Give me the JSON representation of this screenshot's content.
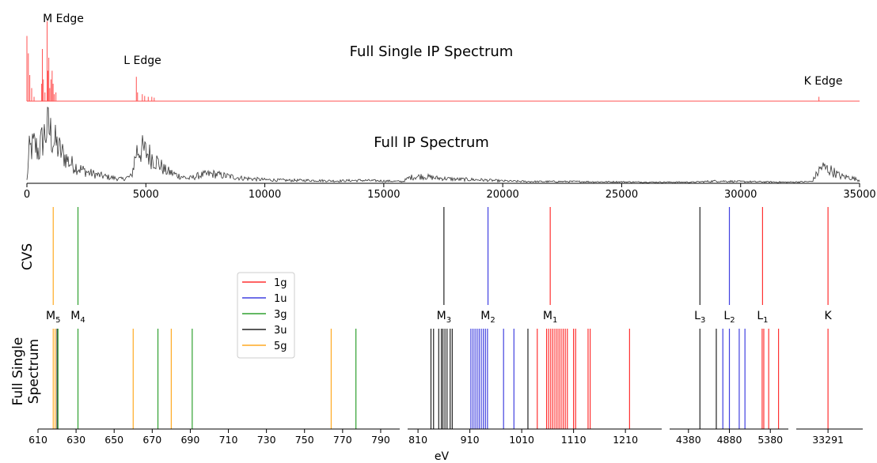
{
  "chart_data": [
    {
      "type": "line",
      "title": "Full Single IP Spectrum",
      "color": "#ff5050",
      "annotations": [
        {
          "text": "M Edge",
          "x": 2500
        },
        {
          "text": "L Edge",
          "x": 4900
        },
        {
          "text": "K Edge",
          "x": 33300
        }
      ],
      "peaks": [
        {
          "x": 0,
          "y": 0.75
        },
        {
          "x": 60,
          "y": 0.55
        },
        {
          "x": 120,
          "y": 0.3
        },
        {
          "x": 200,
          "y": 0.15
        },
        {
          "x": 300,
          "y": 0.05
        },
        {
          "x": 620,
          "y": 0.2
        },
        {
          "x": 650,
          "y": 0.6
        },
        {
          "x": 690,
          "y": 0.25
        },
        {
          "x": 760,
          "y": 0.1
        },
        {
          "x": 850,
          "y": 0.92
        },
        {
          "x": 880,
          "y": 0.35
        },
        {
          "x": 920,
          "y": 0.5
        },
        {
          "x": 960,
          "y": 0.15
        },
        {
          "x": 1010,
          "y": 0.25
        },
        {
          "x": 1060,
          "y": 0.35
        },
        {
          "x": 1100,
          "y": 0.2
        },
        {
          "x": 1150,
          "y": 0.08
        },
        {
          "x": 1220,
          "y": 0.1
        },
        {
          "x": 4600,
          "y": 0.28
        },
        {
          "x": 4650,
          "y": 0.1
        },
        {
          "x": 4850,
          "y": 0.08
        },
        {
          "x": 4950,
          "y": 0.06
        },
        {
          "x": 5100,
          "y": 0.05
        },
        {
          "x": 5250,
          "y": 0.05
        },
        {
          "x": 5350,
          "y": 0.04
        },
        {
          "x": 33291,
          "y": 0.05
        }
      ],
      "xlim": [
        0,
        35000
      ]
    },
    {
      "type": "line",
      "title": "Full IP Spectrum",
      "color": "#333333",
      "xlabel": "",
      "xlim": [
        0,
        35000
      ],
      "xticks": [
        "0",
        "5000",
        "10000",
        "15000",
        "20000",
        "25000",
        "30000",
        "35000"
      ],
      "envelope": [
        [
          0,
          0.05
        ],
        [
          100,
          0.55
        ],
        [
          300,
          0.65
        ],
        [
          500,
          0.55
        ],
        [
          700,
          0.8
        ],
        [
          900,
          0.95
        ],
        [
          1100,
          0.75
        ],
        [
          1400,
          0.55
        ],
        [
          1800,
          0.35
        ],
        [
          2200,
          0.25
        ],
        [
          2600,
          0.18
        ],
        [
          3000,
          0.14
        ],
        [
          3500,
          0.1
        ],
        [
          4000,
          0.07
        ],
        [
          4400,
          0.12
        ],
        [
          4600,
          0.55
        ],
        [
          4800,
          0.58
        ],
        [
          5100,
          0.5
        ],
        [
          5400,
          0.4
        ],
        [
          5800,
          0.22
        ],
        [
          6300,
          0.14
        ],
        [
          6800,
          0.08
        ],
        [
          7300,
          0.14
        ],
        [
          7800,
          0.16
        ],
        [
          8300,
          0.13
        ],
        [
          9000,
          0.09
        ],
        [
          10000,
          0.06
        ],
        [
          11000,
          0.05
        ],
        [
          12000,
          0.05
        ],
        [
          13000,
          0.04
        ],
        [
          14000,
          0.05
        ],
        [
          15000,
          0.04
        ],
        [
          15800,
          0.03
        ],
        [
          16100,
          0.1
        ],
        [
          16600,
          0.12
        ],
        [
          17200,
          0.09
        ],
        [
          18000,
          0.07
        ],
        [
          19000,
          0.06
        ],
        [
          20000,
          0.04
        ],
        [
          21000,
          0.03
        ],
        [
          22000,
          0.03
        ],
        [
          23000,
          0.03
        ],
        [
          24000,
          0.025
        ],
        [
          25000,
          0.025
        ],
        [
          26000,
          0.02
        ],
        [
          27000,
          0.02
        ],
        [
          28000,
          0.02
        ],
        [
          29000,
          0.04
        ],
        [
          30000,
          0.03
        ],
        [
          31000,
          0.025
        ],
        [
          32000,
          0.02
        ],
        [
          33000,
          0.03
        ],
        [
          33400,
          0.28
        ],
        [
          33800,
          0.22
        ],
        [
          34200,
          0.12
        ],
        [
          34600,
          0.1
        ],
        [
          35000,
          0.05
        ]
      ]
    },
    {
      "type": "bar",
      "ylabel_top": "CVS",
      "ylabel_bottom": "Full Single Spectrum",
      "xlabel": "eV",
      "legend": {
        "placement": "center-left",
        "entries": [
          {
            "label": "1g",
            "color": "#ff3030"
          },
          {
            "label": "1u",
            "color": "#4040e0"
          },
          {
            "label": "3g",
            "color": "#30a030"
          },
          {
            "label": "3u",
            "color": "#222222"
          },
          {
            "label": "5g",
            "color": "#ffaa22"
          }
        ]
      },
      "panels": [
        {
          "xlim": [
            610,
            800
          ],
          "xticks": [
            "610",
            "630",
            "650",
            "670",
            "690",
            "710",
            "730",
            "750",
            "770",
            "790"
          ],
          "cvs": [
            {
              "x": 618,
              "sym": "5g"
            },
            {
              "x": 631,
              "sym": "3g"
            }
          ],
          "edge_labels": [
            {
              "x": 618,
              "base": "M",
              "sub": "5"
            },
            {
              "x": 631,
              "base": "M",
              "sub": "4"
            }
          ],
          "full": [
            {
              "x": 618,
              "sym": "5g"
            },
            {
              "x": 619,
              "sym": "5g"
            },
            {
              "x": 620,
              "sym": "3u"
            },
            {
              "x": 620.5,
              "sym": "3g"
            },
            {
              "x": 631,
              "sym": "3g"
            },
            {
              "x": 660,
              "sym": "5g"
            },
            {
              "x": 673,
              "sym": "3g"
            },
            {
              "x": 680,
              "sym": "5g"
            },
            {
              "x": 691,
              "sym": "3g"
            },
            {
              "x": 764,
              "sym": "5g"
            },
            {
              "x": 777,
              "sym": "3g"
            }
          ]
        },
        {
          "xlim": [
            790,
            1280
          ],
          "xticks": [
            "810",
            "910",
            "1010",
            "1110",
            "1210"
          ],
          "cvs": [
            {
              "x": 860,
              "sym": "3u"
            },
            {
              "x": 945,
              "sym": "1u"
            },
            {
              "x": 1065,
              "sym": "1g"
            }
          ],
          "edge_labels": [
            {
              "x": 860,
              "base": "M",
              "sub": "3"
            },
            {
              "x": 945,
              "base": "M",
              "sub": "2"
            },
            {
              "x": 1065,
              "base": "M",
              "sub": "1"
            }
          ],
          "full": [
            {
              "x": 835,
              "sym": "3u"
            },
            {
              "x": 840,
              "sym": "3u"
            },
            {
              "x": 850,
              "sym": "3u"
            },
            {
              "x": 855,
              "sym": "3u"
            },
            {
              "x": 858,
              "sym": "3u"
            },
            {
              "x": 862,
              "sym": "3u"
            },
            {
              "x": 866,
              "sym": "3u"
            },
            {
              "x": 872,
              "sym": "3u"
            },
            {
              "x": 876,
              "sym": "3u"
            },
            {
              "x": 912,
              "sym": "1u"
            },
            {
              "x": 916,
              "sym": "1u"
            },
            {
              "x": 920,
              "sym": "1u"
            },
            {
              "x": 924,
              "sym": "1u"
            },
            {
              "x": 928,
              "sym": "1u"
            },
            {
              "x": 932,
              "sym": "1u"
            },
            {
              "x": 936,
              "sym": "1u"
            },
            {
              "x": 940,
              "sym": "1u"
            },
            {
              "x": 944,
              "sym": "1u"
            },
            {
              "x": 975,
              "sym": "1u"
            },
            {
              "x": 995,
              "sym": "1u"
            },
            {
              "x": 1022,
              "sym": "3u"
            },
            {
              "x": 1040,
              "sym": "1g"
            },
            {
              "x": 1058,
              "sym": "1g"
            },
            {
              "x": 1062,
              "sym": "1g"
            },
            {
              "x": 1066,
              "sym": "1g"
            },
            {
              "x": 1070,
              "sym": "1g"
            },
            {
              "x": 1074,
              "sym": "1g"
            },
            {
              "x": 1078,
              "sym": "1g"
            },
            {
              "x": 1082,
              "sym": "1g"
            },
            {
              "x": 1086,
              "sym": "1g"
            },
            {
              "x": 1090,
              "sym": "1g"
            },
            {
              "x": 1094,
              "sym": "1g"
            },
            {
              "x": 1098,
              "sym": "1g"
            },
            {
              "x": 1110,
              "sym": "1g"
            },
            {
              "x": 1114,
              "sym": "1g"
            },
            {
              "x": 1138,
              "sym": "1g"
            },
            {
              "x": 1142,
              "sym": "1g"
            },
            {
              "x": 1218,
              "sym": "1g"
            }
          ]
        },
        {
          "xlim": [
            4150,
            5600
          ],
          "xticks": [
            "4380",
            "4880",
            "5380"
          ],
          "cvs": [
            {
              "x": 4520,
              "sym": "3u"
            },
            {
              "x": 4880,
              "sym": "1u"
            },
            {
              "x": 5285,
              "sym": "1g"
            }
          ],
          "edge_labels": [
            {
              "x": 4520,
              "base": "L",
              "sub": "3"
            },
            {
              "x": 4880,
              "base": "L",
              "sub": "2"
            },
            {
              "x": 5285,
              "base": "L",
              "sub": "1"
            }
          ],
          "full": [
            {
              "x": 4520,
              "sym": "3u"
            },
            {
              "x": 4720,
              "sym": "3u"
            },
            {
              "x": 4800,
              "sym": "1u"
            },
            {
              "x": 4880,
              "sym": "1u"
            },
            {
              "x": 5000,
              "sym": "1u"
            },
            {
              "x": 5070,
              "sym": "1u"
            },
            {
              "x": 5280,
              "sym": "1g"
            },
            {
              "x": 5300,
              "sym": "1g"
            },
            {
              "x": 5360,
              "sym": "1g"
            },
            {
              "x": 5480,
              "sym": "1g"
            }
          ]
        },
        {
          "xlim": [
            33100,
            33500
          ],
          "xticks": [
            "33291"
          ],
          "cvs": [
            {
              "x": 33291,
              "sym": "1g"
            }
          ],
          "edge_labels": [
            {
              "x": 33291,
              "base": "K",
              "sub": ""
            }
          ],
          "full": [
            {
              "x": 33291,
              "sym": "1g"
            }
          ]
        }
      ]
    }
  ]
}
